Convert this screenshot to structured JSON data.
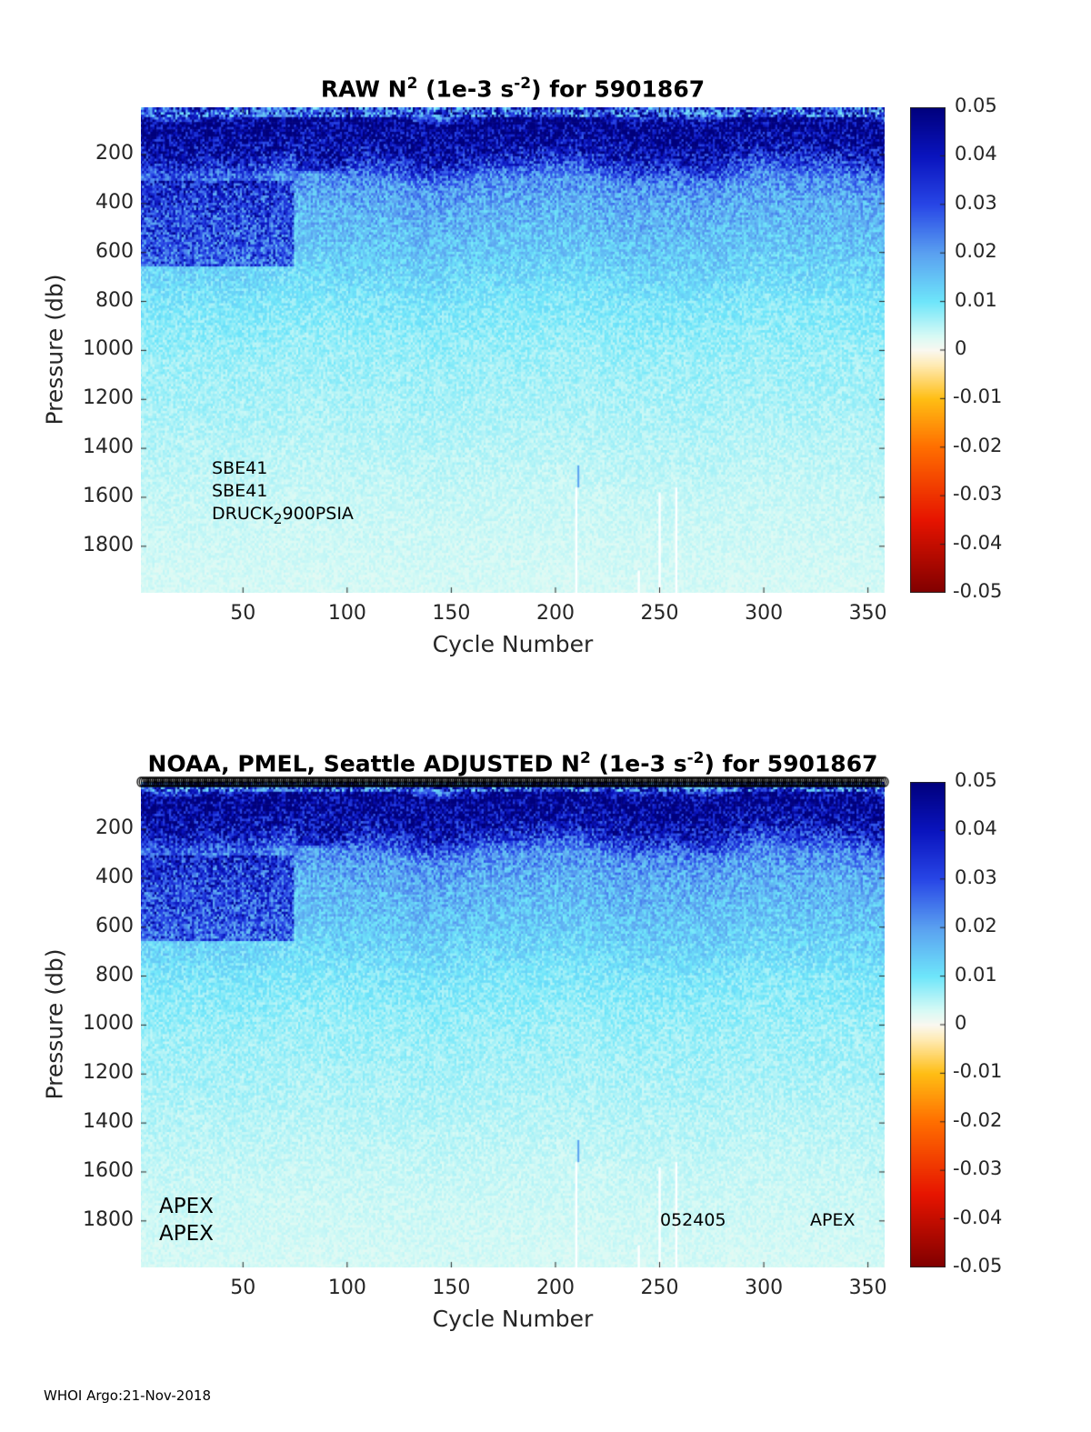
{
  "footer": "WHOI Argo:21-Nov-2018",
  "chart_data": [
    {
      "type": "heatmap",
      "title_prefix": "RAW N",
      "title_sup1": "2",
      "title_mid": " (1e-3 s",
      "title_sup2": "-2",
      "title_suffix": ") for 5901867",
      "xlabel": "Cycle Number",
      "ylabel": "Pressure (db)",
      "xlim": [
        1,
        358
      ],
      "ylim": [
        7,
        1990
      ],
      "y_reversed": true,
      "xticks": [
        "50",
        "100",
        "150",
        "200",
        "250",
        "300",
        "350"
      ],
      "yticks": [
        "200",
        "400",
        "600",
        "800",
        "1000",
        "1200",
        "1400",
        "1600",
        "1800"
      ],
      "colorbar": {
        "clim": [
          -0.05,
          0.05
        ],
        "ticks": [
          "0.05",
          "0.04",
          "0.03",
          "0.02",
          "0.01",
          "0",
          "-0.01",
          "-0.02",
          "-0.03",
          "-0.04",
          "-0.05"
        ]
      },
      "mean_profile": {
        "pressure": [
          7,
          50,
          100,
          200,
          300,
          400,
          600,
          800,
          1000,
          1200,
          1600,
          1990
        ],
        "n2": [
          0.02,
          0.05,
          0.05,
          0.04,
          0.022,
          0.018,
          0.014,
          0.009,
          0.007,
          0.006,
          0.004,
          0.003
        ]
      },
      "gaps": [
        {
          "cycle": 210,
          "from_pressure": 1560
        },
        {
          "cycle": 240,
          "from_pressure": 1900
        },
        {
          "cycle": 250,
          "from_pressure": 1580
        },
        {
          "cycle": 258,
          "from_pressure": 1560
        }
      ],
      "markers_row": false,
      "annotations": [
        {
          "text": "SBE41",
          "pos": "lower-left"
        },
        {
          "text": "SBE41",
          "pos": "lower-left"
        },
        {
          "text": "DRUCK",
          "sub": "2",
          "after": "900PSIA",
          "pos": "lower-left"
        }
      ]
    },
    {
      "type": "heatmap",
      "title_prefix": "NOAA, PMEL, Seattle  ADJUSTED N",
      "title_sup1": "2",
      "title_mid": " (1e-3 s",
      "title_sup2": "-2",
      "title_suffix": ") for 5901867",
      "xlabel": "Cycle Number",
      "ylabel": "Pressure (db)",
      "xlim": [
        1,
        358
      ],
      "ylim": [
        7,
        1990
      ],
      "y_reversed": true,
      "xticks": [
        "50",
        "100",
        "150",
        "200",
        "250",
        "300",
        "350"
      ],
      "yticks": [
        "200",
        "400",
        "600",
        "800",
        "1000",
        "1200",
        "1400",
        "1600",
        "1800"
      ],
      "colorbar": {
        "clim": [
          -0.05,
          0.05
        ],
        "ticks": [
          "0.05",
          "0.04",
          "0.03",
          "0.02",
          "0.01",
          "0",
          "-0.01",
          "-0.02",
          "-0.03",
          "-0.04",
          "-0.05"
        ]
      },
      "mean_profile": {
        "pressure": [
          7,
          50,
          100,
          200,
          300,
          400,
          600,
          800,
          1000,
          1200,
          1600,
          1990
        ],
        "n2": [
          0.02,
          0.05,
          0.05,
          0.04,
          0.022,
          0.018,
          0.014,
          0.009,
          0.007,
          0.006,
          0.004,
          0.003
        ]
      },
      "gaps": [
        {
          "cycle": 210,
          "from_pressure": 1560
        },
        {
          "cycle": 240,
          "from_pressure": 1900
        },
        {
          "cycle": 250,
          "from_pressure": 1580
        },
        {
          "cycle": 258,
          "from_pressure": 1560
        }
      ],
      "markers_row": true,
      "annotations": [
        {
          "text": "APEX",
          "pos": "lower-left"
        },
        {
          "text": "APEX",
          "pos": "lower-left"
        },
        {
          "text": "052405",
          "pos": "lower-mid"
        },
        {
          "text": "APEX",
          "pos": "lower-right"
        }
      ]
    }
  ]
}
